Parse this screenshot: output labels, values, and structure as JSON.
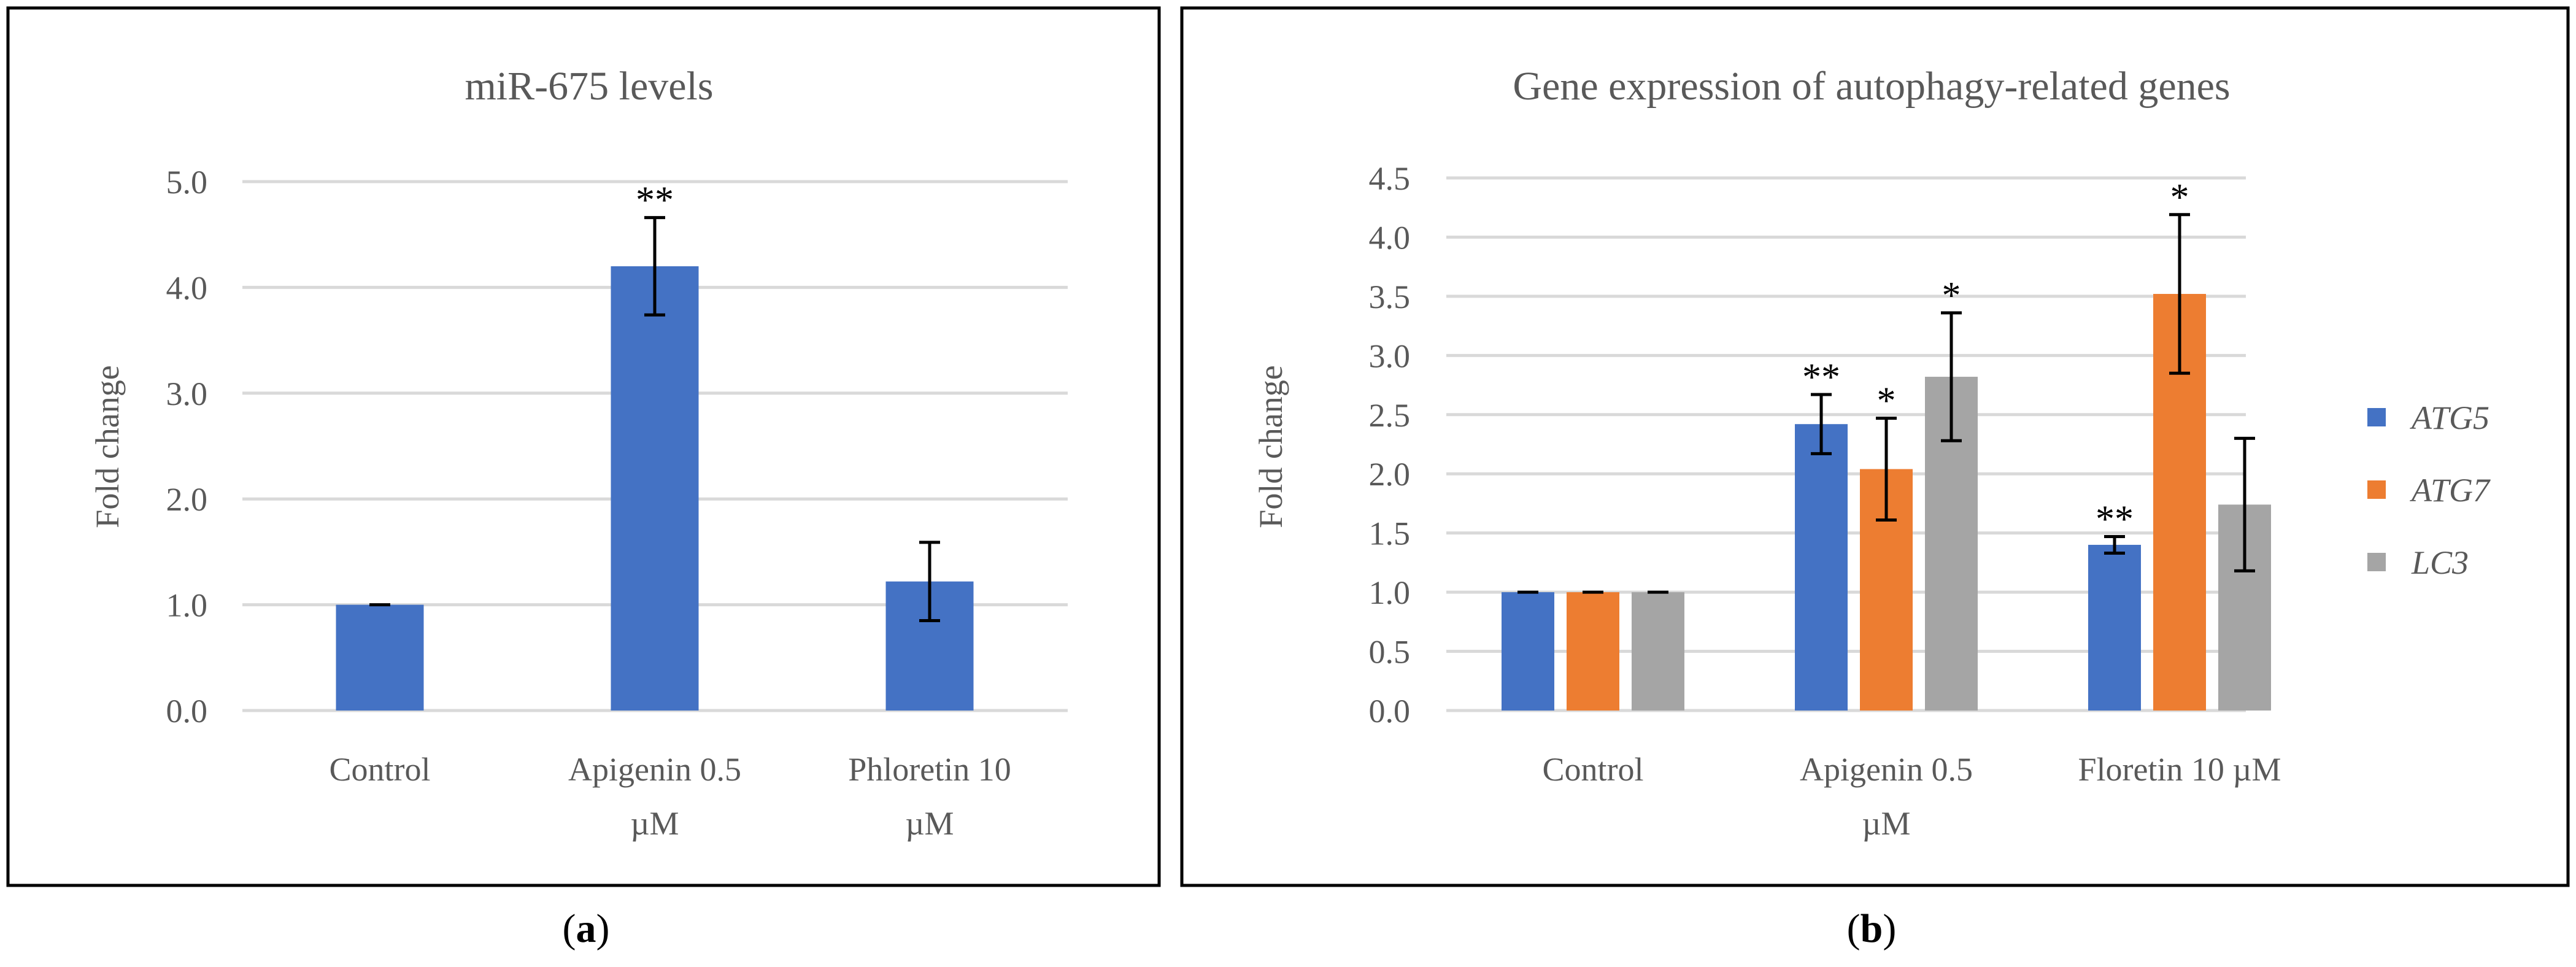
{
  "panels": {
    "a": {
      "label_letter": "a"
    },
    "b": {
      "label_letter": "b"
    }
  },
  "colors": {
    "axis_text": "#595959",
    "grid": "#d9d9d9",
    "frame": "#000000"
  },
  "chart_data": [
    {
      "type": "bar",
      "title": "miR-675 levels",
      "ylabel": "Fold change",
      "xlabel": "",
      "ylim": [
        0,
        5
      ],
      "yticks": [
        "0.0",
        "1.0",
        "2.0",
        "3.0",
        "4.0",
        "5.0"
      ],
      "categories": [
        [
          "Control"
        ],
        [
          "Apigenin 0.5",
          "µM"
        ],
        [
          "Phloretin 10",
          "µM"
        ]
      ],
      "series": [
        {
          "name": "miR-675",
          "color": "#4472c4",
          "values": [
            1.0,
            4.2,
            1.22
          ],
          "errors": [
            0.0,
            0.46,
            0.37
          ],
          "significance": [
            "",
            "**",
            ""
          ]
        }
      ],
      "grid": true,
      "legend": "none"
    },
    {
      "type": "bar",
      "title": "Gene expression of autophagy-related genes",
      "ylabel": "Fold change",
      "xlabel": "",
      "ylim": [
        0,
        4.5
      ],
      "yticks": [
        "0.0",
        "0.5",
        "1.0",
        "1.5",
        "2.0",
        "2.5",
        "3.0",
        "3.5",
        "4.0",
        "4.5"
      ],
      "categories": [
        [
          "Control"
        ],
        [
          "Apigenin 0.5",
          "µM"
        ],
        [
          "Floretin 10 µM"
        ]
      ],
      "series": [
        {
          "name": "ATG5",
          "color": "#4472c4",
          "values": [
            1.0,
            2.42,
            1.4
          ],
          "errors": [
            0.0,
            0.25,
            0.07
          ],
          "significance": [
            "",
            "**",
            "**"
          ]
        },
        {
          "name": "ATG7",
          "color": "#ed7d31",
          "values": [
            1.0,
            2.04,
            3.52
          ],
          "errors": [
            0.0,
            0.43,
            0.67
          ],
          "significance": [
            "",
            "*",
            "*"
          ]
        },
        {
          "name": "LC3",
          "color": "#a5a5a5",
          "values": [
            1.0,
            2.82,
            1.74
          ],
          "errors": [
            0.0,
            0.54,
            0.56
          ],
          "significance": [
            "",
            "*",
            ""
          ]
        }
      ],
      "grid": true,
      "legend": "right"
    }
  ]
}
